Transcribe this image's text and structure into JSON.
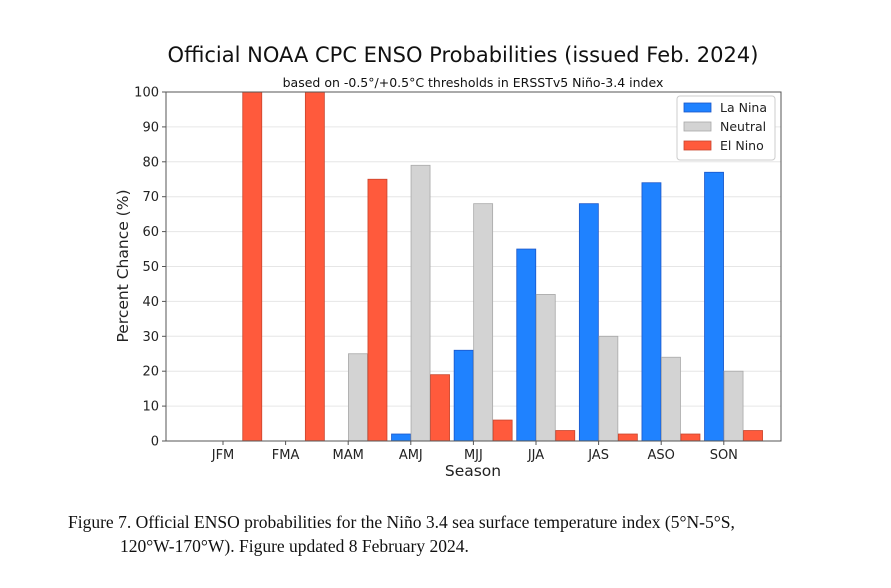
{
  "chart_data": {
    "type": "bar",
    "title": "Official NOAA CPC ENSO Probabilities (issued Feb. 2024)",
    "subtitle": "based on -0.5°/+0.5°C thresholds in ERSSTv5 Niño-3.4 index",
    "xlabel": "Season",
    "ylabel": "Percent Chance (%)",
    "ylim": [
      0,
      100
    ],
    "yticks": [
      0,
      10,
      20,
      30,
      40,
      50,
      60,
      70,
      80,
      90,
      100
    ],
    "grid": true,
    "legend_position": "top-right",
    "categories": [
      "JFM",
      "FMA",
      "MAM",
      "AMJ",
      "MJJ",
      "JJA",
      "JAS",
      "ASO",
      "SON"
    ],
    "series": [
      {
        "name": "La Nina",
        "color": "#1f82ff",
        "edge": "#1a56c8",
        "values": [
          0,
          0,
          0,
          2,
          26,
          55,
          68,
          74,
          77
        ]
      },
      {
        "name": "Neutral",
        "color": "#d3d3d3",
        "edge": "#a8a8a8",
        "values": [
          0,
          0,
          25,
          79,
          68,
          42,
          30,
          24,
          20
        ]
      },
      {
        "name": "El Nino",
        "color": "#ff5a3c",
        "edge": "#c8442c",
        "values": [
          100,
          100,
          75,
          19,
          6,
          3,
          2,
          2,
          3
        ]
      }
    ]
  },
  "caption": {
    "line1": "Figure 7. Official ENSO probabilities for the Niño 3.4 sea surface temperature index (5°N-5°S,",
    "line2": "120°W-170°W). Figure updated 8 February 2024."
  }
}
